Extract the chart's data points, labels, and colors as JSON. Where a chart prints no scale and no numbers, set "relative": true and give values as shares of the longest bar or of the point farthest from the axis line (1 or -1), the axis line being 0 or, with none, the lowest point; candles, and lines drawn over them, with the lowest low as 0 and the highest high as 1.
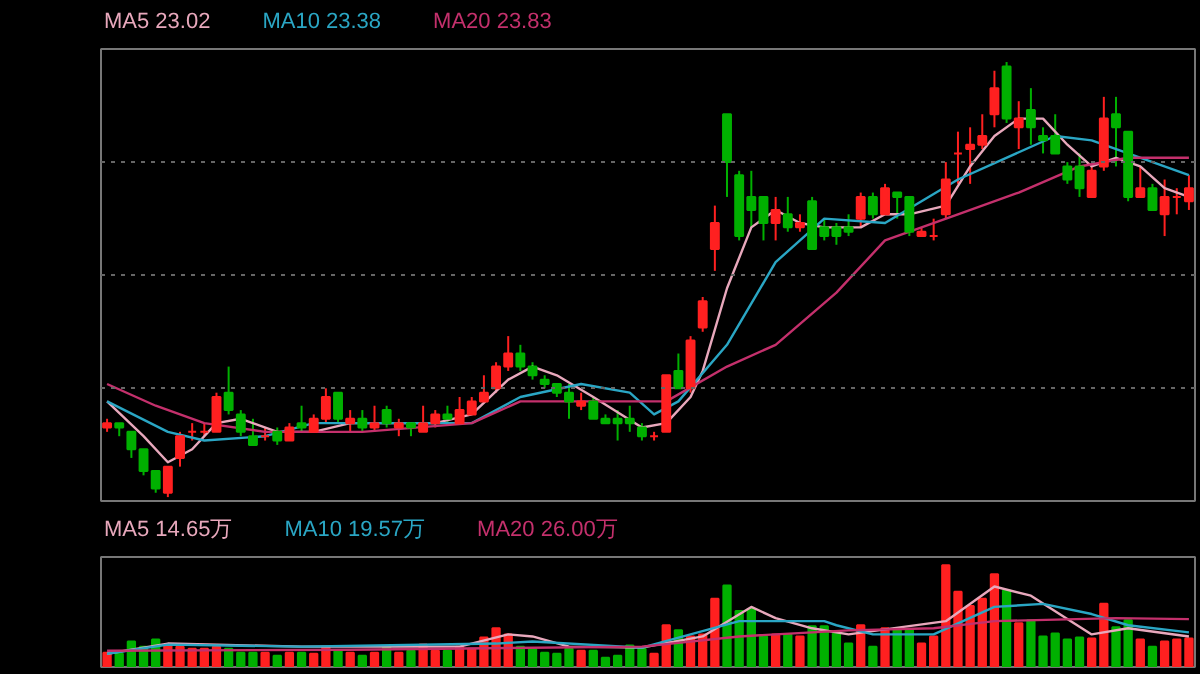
{
  "chart_data": [
    {
      "type": "candlestick",
      "relative": true,
      "grid": "y",
      "categories": [
        null,
        null,
        null,
        null,
        null,
        null,
        null,
        null,
        null,
        null,
        null,
        null,
        null,
        null,
        null,
        null,
        null,
        null,
        null,
        null,
        null,
        null,
        null,
        null,
        null,
        null,
        null,
        null,
        null,
        null,
        null,
        null,
        null,
        null,
        null,
        null,
        null,
        null,
        null,
        null,
        null,
        null,
        null,
        null,
        null,
        null,
        null,
        null,
        null,
        null,
        null,
        null,
        null,
        null,
        null,
        null,
        null,
        null,
        null,
        null,
        null,
        null,
        null,
        null,
        null,
        null,
        null,
        null,
        null,
        null,
        null,
        null,
        null,
        null,
        null,
        null,
        null,
        null,
        null,
        null,
        null,
        null,
        null,
        null,
        null,
        null,
        null,
        null,
        null,
        null
      ],
      "ohlc": [
        [
          0.16,
          0.18,
          0.15,
          0.17
        ],
        [
          0.17,
          0.17,
          0.14,
          0.16
        ],
        [
          0.15,
          0.15,
          0.09,
          0.11
        ],
        [
          0.11,
          0.11,
          0.05,
          0.06
        ],
        [
          0.06,
          0.06,
          0.01,
          0.02
        ],
        [
          0.01,
          0.07,
          0,
          0.07
        ],
        [
          0.09,
          0.15,
          0.07,
          0.14
        ],
        [
          0.15,
          0.17,
          0.13,
          0.15
        ],
        [
          0.15,
          0.17,
          0.14,
          0.15
        ],
        [
          0.15,
          0.24,
          0.15,
          0.23
        ],
        [
          0.24,
          0.3,
          0.19,
          0.2
        ],
        [
          0.19,
          0.2,
          0.14,
          0.15
        ],
        [
          0.14,
          0.18,
          0.12,
          0.12
        ],
        [
          0.14,
          0.16,
          0.13,
          0.14
        ],
        [
          0.15,
          0.16,
          0.12,
          0.13
        ],
        [
          0.13,
          0.17,
          0.13,
          0.16
        ],
        [
          0.17,
          0.21,
          0.15,
          0.16
        ],
        [
          0.15,
          0.19,
          0.15,
          0.18
        ],
        [
          0.18,
          0.25,
          0.17,
          0.23
        ],
        [
          0.24,
          0.24,
          0.17,
          0.18
        ],
        [
          0.17,
          0.2,
          0.15,
          0.18
        ],
        [
          0.18,
          0.2,
          0.15,
          0.16
        ],
        [
          0.16,
          0.21,
          0.15,
          0.17
        ],
        [
          0.2,
          0.21,
          0.16,
          0.17
        ],
        [
          0.16,
          0.18,
          0.14,
          0.17
        ],
        [
          0.17,
          0.17,
          0.14,
          0.16
        ],
        [
          0.15,
          0.21,
          0.15,
          0.17
        ],
        [
          0.17,
          0.2,
          0.16,
          0.19
        ],
        [
          0.19,
          0.21,
          0.17,
          0.18
        ],
        [
          0.17,
          0.23,
          0.17,
          0.2
        ],
        [
          0.19,
          0.23,
          0.19,
          0.22
        ],
        [
          0.22,
          0.28,
          0.22,
          0.24
        ],
        [
          0.25,
          0.31,
          0.24,
          0.3
        ],
        [
          0.3,
          0.37,
          0.29,
          0.33
        ],
        [
          0.33,
          0.35,
          0.29,
          0.3
        ],
        [
          0.3,
          0.31,
          0.27,
          0.28
        ],
        [
          0.27,
          0.28,
          0.25,
          0.26
        ],
        [
          0.26,
          0.26,
          0.23,
          0.24
        ],
        [
          0.24,
          0.26,
          0.18,
          0.22
        ],
        [
          0.21,
          0.24,
          0.2,
          0.22
        ],
        [
          0.22,
          0.23,
          0.18,
          0.18
        ],
        [
          0.18,
          0.19,
          0.17,
          0.17
        ],
        [
          0.18,
          0.2,
          0.13,
          0.17
        ],
        [
          0.18,
          0.21,
          0.15,
          0.17
        ],
        [
          0.16,
          0.17,
          0.13,
          0.14
        ],
        [
          0.14,
          0.15,
          0.13,
          0.14
        ],
        [
          0.15,
          0.28,
          0.15,
          0.28
        ],
        [
          0.29,
          0.33,
          0.25,
          0.25
        ],
        [
          0.25,
          0.37,
          0.24,
          0.36
        ],
        [
          0.39,
          0.46,
          0.38,
          0.45
        ],
        [
          0.57,
          0.67,
          0.52,
          0.63
        ],
        [
          0.88,
          0.88,
          0.69,
          0.77
        ],
        [
          0.74,
          0.75,
          0.59,
          0.6
        ],
        [
          0.69,
          0.75,
          0.62,
          0.66
        ],
        [
          0.69,
          0.69,
          0.59,
          0.63
        ],
        [
          0.63,
          0.69,
          0.59,
          0.66
        ],
        [
          0.65,
          0.69,
          0.61,
          0.62
        ],
        [
          0.62,
          0.65,
          0.61,
          0.63
        ],
        [
          0.68,
          0.69,
          0.57,
          0.57
        ],
        [
          0.62,
          0.64,
          0.59,
          0.6
        ],
        [
          0.62,
          0.63,
          0.58,
          0.6
        ],
        [
          0.62,
          0.65,
          0.6,
          0.61
        ],
        [
          0.64,
          0.7,
          0.62,
          0.69
        ],
        [
          0.69,
          0.7,
          0.64,
          0.65
        ],
        [
          0.65,
          0.72,
          0.65,
          0.71
        ],
        [
          0.7,
          0.7,
          0.64,
          0.69
        ],
        [
          0.69,
          0.69,
          0.6,
          0.61
        ],
        [
          0.6,
          0.62,
          0.6,
          0.61
        ],
        [
          0.6,
          0.64,
          0.59,
          0.6
        ],
        [
          0.65,
          0.77,
          0.64,
          0.73
        ],
        [
          0.79,
          0.84,
          0.72,
          0.79
        ],
        [
          0.8,
          0.85,
          0.72,
          0.81
        ],
        [
          0.81,
          0.88,
          0.8,
          0.83
        ],
        [
          0.88,
          0.98,
          0.85,
          0.94
        ],
        [
          0.99,
          1,
          0.86,
          0.87
        ],
        [
          0.85,
          0.91,
          0.8,
          0.87
        ],
        [
          0.89,
          0.94,
          0.81,
          0.85
        ],
        [
          0.83,
          0.85,
          0.79,
          0.82
        ],
        [
          0.83,
          0.88,
          0.79,
          0.79
        ],
        [
          0.76,
          0.77,
          0.72,
          0.73
        ],
        [
          0.76,
          0.79,
          0.69,
          0.71
        ],
        [
          0.69,
          0.76,
          0.69,
          0.75
        ],
        [
          0.76,
          0.92,
          0.75,
          0.87
        ],
        [
          0.88,
          0.92,
          0.76,
          0.85
        ],
        [
          0.84,
          0.84,
          0.68,
          0.69
        ],
        [
          0.69,
          0.76,
          0.69,
          0.71
        ],
        [
          0.71,
          0.72,
          0.66,
          0.66
        ],
        [
          0.65,
          0.73,
          0.6,
          0.69
        ],
        [
          0.69,
          0.71,
          0.65,
          0.69
        ],
        [
          0.68,
          0.74,
          0.66,
          0.71
        ]
      ],
      "series": [
        {
          "name": "MA5 23.02",
          "type": "line",
          "color": "#e8a8bc",
          "values": [
            0.22,
            null,
            null,
            0.14,
            null,
            0.08,
            null,
            0.11,
            null,
            0.17,
            null,
            0.18,
            null,
            null,
            0.15,
            null,
            null,
            0.15,
            null,
            null,
            0.17,
            null,
            null,
            null,
            0.17,
            null,
            null,
            0.17,
            null,
            null,
            0.19,
            null,
            null,
            0.27,
            null,
            0.3,
            null,
            0.28,
            null,
            null,
            0.23,
            null,
            null,
            null,
            0.16,
            null,
            0.17,
            null,
            0.23,
            0.29,
            null,
            0.48,
            null,
            0.62,
            null,
            0.66,
            null,
            0.63,
            null,
            0.62,
            null,
            null,
            0.62,
            null,
            0.65,
            null,
            0.65,
            null,
            null,
            0.67,
            null,
            0.76,
            null,
            0.83,
            null,
            0.87,
            null,
            0.87,
            null,
            0.81,
            null,
            0.76,
            null,
            0.78,
            null,
            0.76,
            null,
            0.71,
            null,
            0.69
          ]
        },
        {
          "name": "MA10 23.38",
          "type": "line",
          "color": "#2aa6c4",
          "values": [
            0.22,
            null,
            null,
            null,
            null,
            0.15,
            null,
            null,
            0.13,
            null,
            null,
            null,
            null,
            0.14,
            null,
            null,
            null,
            0.17,
            null,
            null,
            null,
            0.17,
            null,
            null,
            null,
            null,
            null,
            0.17,
            null,
            null,
            0.17,
            null,
            null,
            null,
            0.23,
            null,
            null,
            null,
            null,
            0.26,
            null,
            null,
            null,
            0.24,
            null,
            0.19,
            null,
            0.22,
            null,
            null,
            null,
            0.35,
            null,
            null,
            null,
            0.54,
            null,
            null,
            null,
            0.64,
            null,
            null,
            null,
            null,
            0.63,
            null,
            null,
            null,
            null,
            null,
            0.73,
            null,
            null,
            null,
            null,
            null,
            null,
            null,
            0.83,
            null,
            null,
            0.82,
            null,
            null,
            0.79,
            null,
            null,
            null,
            null,
            0.74
          ]
        },
        {
          "name": "MA20 23.83",
          "type": "line",
          "color": "#c4306c",
          "values": [
            0.26,
            null,
            null,
            null,
            0.21,
            null,
            null,
            null,
            0.17,
            null,
            null,
            null,
            null,
            0.15,
            null,
            null,
            null,
            null,
            null,
            null,
            null,
            0.15,
            null,
            null,
            null,
            null,
            null,
            null,
            null,
            null,
            0.17,
            null,
            null,
            null,
            0.22,
            null,
            null,
            null,
            null,
            null,
            null,
            null,
            null,
            0.22,
            null,
            null,
            0.22,
            null,
            null,
            null,
            null,
            0.3,
            null,
            null,
            null,
            0.35,
            null,
            null,
            null,
            null,
            0.47,
            null,
            null,
            null,
            0.59,
            null,
            null,
            null,
            null,
            null,
            0.65,
            null,
            null,
            null,
            null,
            0.7,
            null,
            null,
            null,
            null,
            0.76,
            null,
            null,
            null,
            0.78,
            null,
            null,
            null,
            null,
            0.78
          ]
        }
      ]
    },
    {
      "type": "bar",
      "relative": true,
      "categories": [
        null,
        null,
        null,
        null,
        null,
        null,
        null,
        null,
        null,
        null,
        null,
        null,
        null,
        null,
        null,
        null,
        null,
        null,
        null,
        null,
        null,
        null,
        null,
        null,
        null,
        null,
        null,
        null,
        null,
        null,
        null,
        null,
        null,
        null,
        null,
        null,
        null,
        null,
        null,
        null,
        null,
        null,
        null,
        null,
        null,
        null,
        null,
        null,
        null,
        null,
        null,
        null,
        null,
        null,
        null,
        null,
        null,
        null,
        null,
        null,
        null,
        null,
        null,
        null,
        null,
        null,
        null,
        null,
        null,
        null,
        null,
        null,
        null,
        null,
        null,
        null,
        null,
        null,
        null,
        null,
        null,
        null,
        null,
        null,
        null,
        null,
        null,
        null,
        null,
        null
      ],
      "values": [
        0.14,
        0.13,
        0.25,
        0.2,
        0.27,
        0.22,
        0.2,
        0.18,
        0.18,
        0.2,
        0.18,
        0.14,
        0.14,
        0.14,
        0.11,
        0.14,
        0.14,
        0.13,
        0.2,
        0.16,
        0.14,
        0.11,
        0.14,
        0.2,
        0.14,
        0.16,
        0.22,
        0.16,
        0.16,
        0.2,
        0.18,
        0.29,
        0.38,
        0.32,
        0.2,
        0.18,
        0.14,
        0.13,
        0.18,
        0.16,
        0.16,
        0.09,
        0.11,
        0.21,
        0.18,
        0.13,
        0.41,
        0.36,
        0.3,
        0.32,
        0.67,
        0.8,
        0.55,
        0.57,
        0.3,
        0.32,
        0.32,
        0.3,
        0.4,
        0.4,
        0.33,
        0.23,
        0.41,
        0.2,
        0.38,
        0.38,
        0.36,
        0.23,
        0.3,
        1,
        0.74,
        0.6,
        0.67,
        0.91,
        0.75,
        0.43,
        0.46,
        0.3,
        0.33,
        0.27,
        0.29,
        0.28,
        0.62,
        0.39,
        0.46,
        0.27,
        0.2,
        0.25,
        0.27,
        0.28
      ],
      "colors": [
        "#ff2020",
        "#00b000",
        "#00b000",
        "#00b000",
        "#00b000",
        "#ff2020",
        "#ff2020",
        "#ff2020",
        "#ff2020",
        "#ff2020",
        "#00b000",
        "#00b000",
        "#00b000",
        "#ff2020",
        "#00b000",
        "#ff2020",
        "#00b000",
        "#ff2020",
        "#ff2020",
        "#00b000",
        "#ff2020",
        "#00b000",
        "#ff2020",
        "#00b000",
        "#ff2020",
        "#00b000",
        "#ff2020",
        "#ff2020",
        "#00b000",
        "#ff2020",
        "#ff2020",
        "#ff2020",
        "#ff2020",
        "#ff2020",
        "#00b000",
        "#00b000",
        "#00b000",
        "#00b000",
        "#00b000",
        "#ff2020",
        "#00b000",
        "#00b000",
        "#00b000",
        "#00b000",
        "#00b000",
        "#ff2020",
        "#ff2020",
        "#00b000",
        "#ff2020",
        "#ff2020",
        "#ff2020",
        "#00b000",
        "#00b000",
        "#00b000",
        "#00b000",
        "#ff2020",
        "#00b000",
        "#ff2020",
        "#00b000",
        "#00b000",
        "#00b000",
        "#00b000",
        "#ff2020",
        "#00b000",
        "#ff2020",
        "#00b000",
        "#00b000",
        "#ff2020",
        "#ff2020",
        "#ff2020",
        "#ff2020",
        "#ff2020",
        "#ff2020",
        "#ff2020",
        "#00b000",
        "#ff2020",
        "#00b000",
        "#00b000",
        "#00b000",
        "#00b000",
        "#00b000",
        "#ff2020",
        "#ff2020",
        "#00b000",
        "#00b000",
        "#ff2020",
        "#00b000",
        "#ff2020",
        "#ff2020",
        "#ff2020"
      ],
      "series": [
        {
          "name": "MA5 14.65万",
          "type": "line",
          "color": "#e8a8bc",
          "values": [
            0.13,
            null,
            null,
            null,
            null,
            0.23,
            null,
            null,
            null,
            null,
            null,
            null,
            null,
            null,
            null,
            null,
            0.2,
            null,
            null,
            null,
            null,
            null,
            null,
            null,
            null,
            null,
            null,
            null,
            null,
            0.2,
            null,
            null,
            null,
            0.32,
            null,
            0.3,
            null,
            null,
            0.2,
            null,
            null,
            null,
            null,
            null,
            0.19,
            null,
            null,
            null,
            null,
            0.3,
            null,
            null,
            null,
            0.59,
            null,
            0.48,
            null,
            null,
            0.38,
            null,
            null,
            0.32,
            null,
            null,
            null,
            null,
            null,
            null,
            null,
            0.45,
            null,
            null,
            null,
            0.79,
            null,
            null,
            0.7,
            null,
            null,
            null,
            null,
            0.32,
            null,
            null,
            0.38,
            null,
            null,
            null,
            null,
            0.3
          ]
        },
        {
          "name": "MA10 19.57万",
          "type": "line",
          "color": "#2aa6c4",
          "values": [
            0.13,
            null,
            null,
            null,
            null,
            0.22,
            null,
            null,
            null,
            null,
            null,
            null,
            null,
            null,
            null,
            null,
            0.2,
            null,
            null,
            null,
            null,
            null,
            null,
            null,
            null,
            null,
            null,
            null,
            null,
            null,
            null,
            null,
            0.23,
            null,
            null,
            0.25,
            null,
            null,
            null,
            null,
            null,
            null,
            null,
            null,
            0.19,
            null,
            null,
            null,
            null,
            null,
            null,
            null,
            0.45,
            null,
            null,
            null,
            null,
            null,
            null,
            0.45,
            0.41,
            null,
            null,
            0.32,
            null,
            null,
            null,
            null,
            0.32,
            null,
            null,
            null,
            null,
            0.59,
            null,
            null,
            null,
            0.62,
            null,
            null,
            null,
            0.52,
            null,
            null,
            0.41,
            null,
            null,
            null,
            null,
            0.34
          ]
        },
        {
          "name": "MA20 26.00万",
          "type": "line",
          "color": "#c4306c",
          "values": [
            0.16,
            null,
            null,
            null,
            null,
            null,
            null,
            null,
            null,
            null,
            null,
            null,
            null,
            null,
            null,
            null,
            null,
            null,
            null,
            null,
            0.17,
            null,
            null,
            null,
            null,
            null,
            null,
            null,
            null,
            null,
            null,
            null,
            null,
            null,
            null,
            null,
            null,
            null,
            null,
            null,
            null,
            null,
            null,
            null,
            0.2,
            null,
            null,
            null,
            null,
            null,
            null,
            null,
            0.3,
            null,
            null,
            null,
            null,
            null,
            null,
            null,
            null,
            0.36,
            null,
            null,
            null,
            null,
            null,
            null,
            0.38,
            null,
            null,
            null,
            null,
            0.45,
            null,
            null,
            null,
            null,
            null,
            null,
            null,
            null,
            null,
            0.48,
            null,
            null,
            null,
            null,
            null,
            0.47
          ]
        }
      ]
    }
  ]
}
